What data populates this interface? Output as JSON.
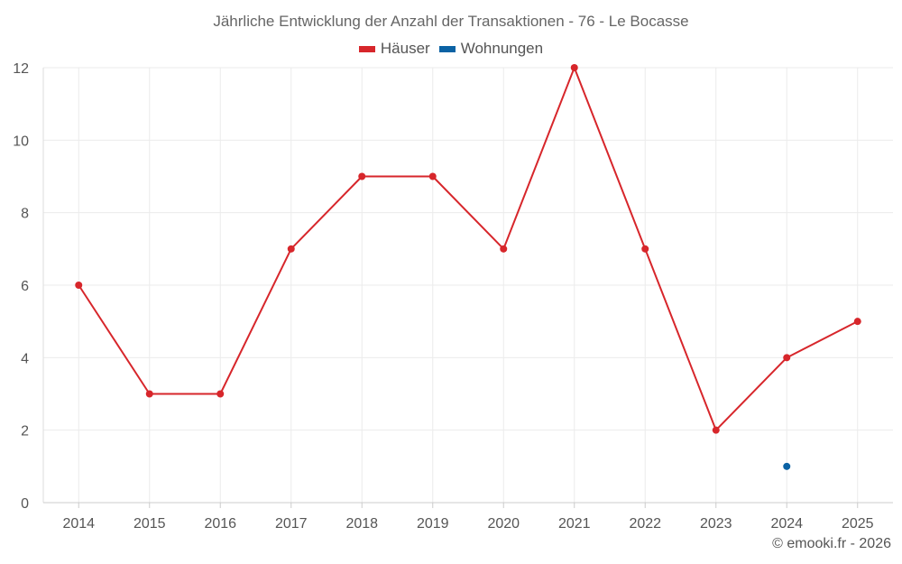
{
  "chart_data": {
    "type": "line",
    "title": "Jährliche Entwicklung der Anzahl der Transaktionen - 76 - Le Bocasse",
    "categories": [
      "2014",
      "2015",
      "2016",
      "2017",
      "2018",
      "2019",
      "2020",
      "2021",
      "2022",
      "2023",
      "2024",
      "2025"
    ],
    "series": [
      {
        "name": "Häuser",
        "color": "#d7262b",
        "values": [
          6,
          3,
          3,
          7,
          9,
          9,
          7,
          12,
          7,
          2,
          4,
          5
        ]
      },
      {
        "name": "Wohnungen",
        "color": "#0b62a4",
        "values": [
          null,
          null,
          null,
          null,
          null,
          null,
          null,
          null,
          null,
          null,
          1,
          null
        ]
      }
    ],
    "ylim": [
      0,
      12
    ],
    "yticks": [
      0,
      2,
      4,
      6,
      8,
      10,
      12
    ],
    "grid": true,
    "legend": "top-center",
    "xlabel": "",
    "ylabel": ""
  },
  "credit": "© emooki.fr - 2026"
}
